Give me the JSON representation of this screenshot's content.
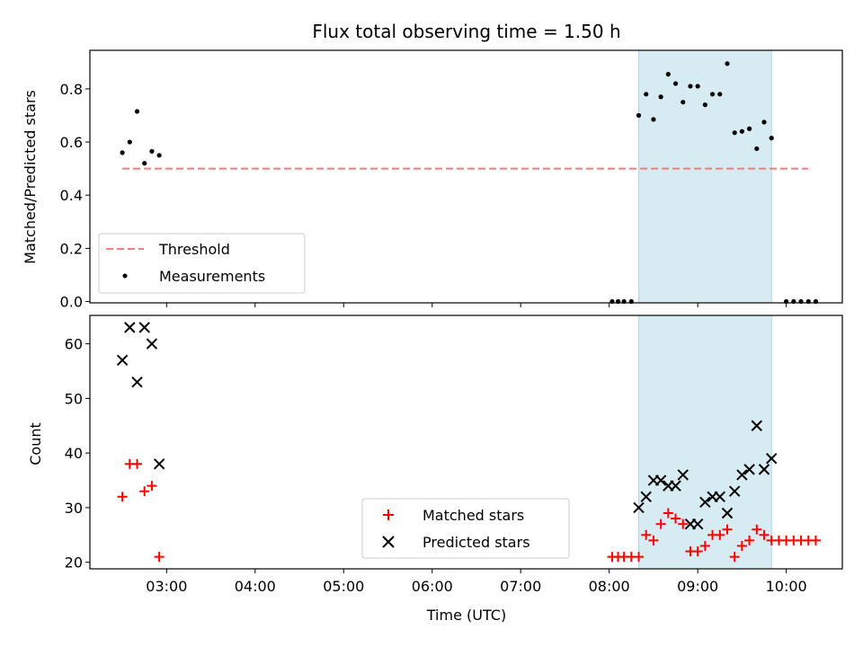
{
  "chart_data": [
    {
      "type": "scatter",
      "title": "Flux total observing time = 1.50 h",
      "ylabel": "Matched/Predicted stars",
      "xlim": [
        "02:08",
        "10:38"
      ],
      "ylim": [
        -0.005,
        0.945
      ],
      "yticks": [
        "0.0",
        "0.2",
        "0.4",
        "0.6",
        "0.8"
      ],
      "grid": false,
      "legend_position": "lower-left",
      "shaded_interval": {
        "start": "08:20",
        "end": "09:50",
        "color": "#add8e6"
      },
      "series": [
        {
          "name": "Threshold",
          "style": "dashed-line",
          "color": "#f07c7c",
          "x": [
            "02:30",
            "10:15"
          ],
          "y": [
            0.5,
            0.5
          ]
        },
        {
          "name": "Measurements",
          "style": "dot",
          "color": "#000000",
          "x": [
            "02:30",
            "02:35",
            "02:40",
            "02:45",
            "02:50",
            "02:55",
            "08:02",
            "08:06",
            "08:10",
            "08:15",
            "08:20",
            "08:25",
            "08:30",
            "08:35",
            "08:40",
            "08:45",
            "08:50",
            "08:55",
            "09:00",
            "09:05",
            "09:10",
            "09:15",
            "09:20",
            "09:25",
            "09:30",
            "09:35",
            "09:40",
            "09:45",
            "09:50",
            "10:00",
            "10:05",
            "10:10",
            "10:15",
            "10:20"
          ],
          "y": [
            0.56,
            0.6,
            0.715,
            0.52,
            0.565,
            0.55,
            0.0,
            0.0,
            0.0,
            0.0,
            0.7,
            0.78,
            0.685,
            0.77,
            0.855,
            0.82,
            0.75,
            0.81,
            0.81,
            0.74,
            0.78,
            0.78,
            0.895,
            0.635,
            0.64,
            0.65,
            0.575,
            0.675,
            0.615,
            0.0,
            0.0,
            0.0,
            0.0,
            0.0
          ]
        }
      ]
    },
    {
      "type": "scatter",
      "xlabel": "Time (UTC)",
      "ylabel": "Count",
      "xlim": [
        "02:08",
        "10:38"
      ],
      "ylim": [
        18.8,
        65.2
      ],
      "xticks": [
        "03:00",
        "04:00",
        "05:00",
        "06:00",
        "07:00",
        "08:00",
        "09:00",
        "10:00"
      ],
      "yticks": [
        "20",
        "30",
        "40",
        "50",
        "60"
      ],
      "grid": false,
      "legend_position": "lower-center",
      "shaded_interval": {
        "start": "08:20",
        "end": "09:50",
        "color": "#add8e6"
      },
      "series": [
        {
          "name": "Matched stars",
          "style": "plus",
          "color": "#ff0000",
          "x": [
            "02:30",
            "02:35",
            "02:40",
            "02:45",
            "02:50",
            "02:55",
            "08:02",
            "08:06",
            "08:10",
            "08:15",
            "08:20",
            "08:25",
            "08:30",
            "08:35",
            "08:40",
            "08:45",
            "08:50",
            "08:55",
            "09:00",
            "09:05",
            "09:10",
            "09:15",
            "09:20",
            "09:25",
            "09:30",
            "09:35",
            "09:40",
            "09:45",
            "09:50",
            "09:55",
            "10:00",
            "10:05",
            "10:10",
            "10:15",
            "10:20"
          ],
          "y": [
            32,
            38,
            38,
            33,
            34,
            21,
            21,
            21,
            21,
            21,
            21,
            25,
            24,
            27,
            29,
            28,
            27,
            22,
            22,
            23,
            25,
            25,
            26,
            21,
            23,
            24,
            26,
            25,
            24,
            24,
            24,
            24,
            24,
            24,
            24
          ]
        },
        {
          "name": "Predicted stars",
          "style": "x",
          "color": "#000000",
          "x": [
            "02:30",
            "02:35",
            "02:40",
            "02:45",
            "02:50",
            "02:55",
            "08:20",
            "08:25",
            "08:30",
            "08:35",
            "08:40",
            "08:45",
            "08:50",
            "08:55",
            "09:00",
            "09:05",
            "09:10",
            "09:15",
            "09:20",
            "09:25",
            "09:30",
            "09:35",
            "09:40",
            "09:45",
            "09:50"
          ],
          "y": [
            57,
            63,
            53,
            63,
            60,
            38,
            30,
            32,
            35,
            35,
            34,
            34,
            36,
            27,
            27,
            31,
            32,
            32,
            29,
            33,
            36,
            37,
            45,
            37,
            39
          ]
        }
      ]
    }
  ]
}
